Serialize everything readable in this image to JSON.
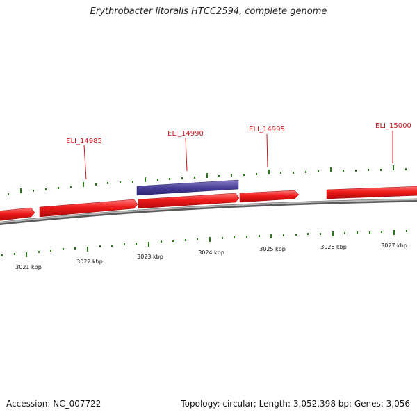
{
  "title": "Erythrobacter litoralis HTCC2594, complete genome",
  "footer": {
    "accession": "Accession: NC_007722",
    "summary": "Topology: circular; Length: 3,052,398 bp; Genes: 3,056"
  },
  "colors": {
    "forward_gene": "#e8141a",
    "highlight_gene": "#4a3f98",
    "backbone": "#8a8a8a",
    "tick": "#2a7a1a",
    "gene_label": "#c8141a"
  },
  "gene_labels": [
    "ELI_14985",
    "ELI_14990",
    "ELI_14995",
    "ELI_15000"
  ],
  "kbp_labels": [
    "3021 kbp",
    "3022 kbp",
    "3023 kbp",
    "3024 kbp",
    "3025 kbp",
    "3026 kbp",
    "3027 kbp"
  ]
}
